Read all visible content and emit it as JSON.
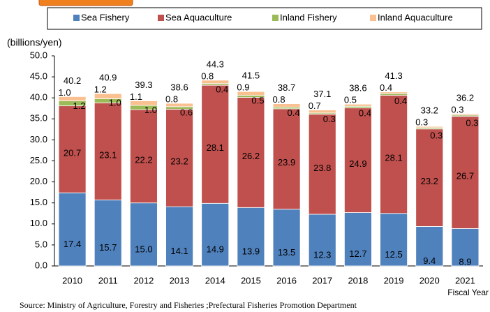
{
  "chart_data": {
    "type": "stacked_bar",
    "y_label": "(billions/yen)",
    "x_label": "Fiscal Year",
    "source": "Source: Ministry of Agriculture, Forestry and Fisheries ;Prefectural Fisheries Promotion Department",
    "categories": [
      "2010",
      "2011",
      "2012",
      "2013",
      "2014",
      "2015",
      "2016",
      "2017",
      "2018",
      "2019",
      "2020",
      "2021"
    ],
    "series": [
      {
        "name": "Sea Fishery",
        "color": "#4f81bd",
        "values": [
          17.4,
          15.7,
          15.0,
          14.1,
          14.9,
          13.9,
          13.5,
          12.3,
          12.7,
          12.5,
          9.4,
          8.9
        ],
        "value_labels": [
          "17.4",
          "15.7",
          "15.0",
          "14.1",
          "14.9",
          "13.9",
          "13.5",
          "12.3",
          "12.7",
          "12.5",
          "9.4",
          "8.9"
        ]
      },
      {
        "name": "Sea Aquaculture",
        "color": "#c0504d",
        "values": [
          20.7,
          23.1,
          22.2,
          23.2,
          28.1,
          26.2,
          23.9,
          23.8,
          24.9,
          28.1,
          23.2,
          26.7
        ],
        "value_labels": [
          "20.7",
          "23.1",
          "22.2",
          "23.2",
          "28.1",
          "26.2",
          "23.9",
          "23.8",
          "24.9",
          "28.1",
          "23.2",
          "26.7"
        ]
      },
      {
        "name": "Inland Fishery",
        "color": "#9bbb59",
        "values": [
          1.2,
          1.0,
          1.0,
          0.6,
          0.4,
          0.5,
          0.4,
          0.3,
          0.4,
          0.4,
          0.3,
          0.3
        ],
        "value_labels": [
          "1.2",
          "1.0",
          "1.0",
          "0.6",
          "0.4",
          "0.5",
          "0.4",
          "0.3",
          "0.4",
          "0.4",
          "0.3",
          "0.3"
        ]
      },
      {
        "name": "Inland Aquaculture",
        "color": "#fac090",
        "values": [
          1.0,
          1.2,
          1.1,
          0.8,
          0.8,
          0.9,
          0.8,
          0.7,
          0.5,
          0.4,
          0.3,
          0.3
        ],
        "value_labels": [
          "1.0",
          "1.2",
          "1.1",
          "0.8",
          "0.8",
          "0.9",
          "0.8",
          "0.7",
          "0.5",
          "0.4",
          "0.3",
          "0.3"
        ]
      }
    ],
    "totals": [
      40.2,
      40.9,
      39.3,
      38.6,
      44.3,
      41.5,
      38.7,
      37.1,
      38.6,
      41.3,
      33.2,
      36.2
    ],
    "ylim": [
      0,
      50
    ],
    "yticks": [
      {
        "value": 0,
        "label": "0.0"
      },
      {
        "value": 5,
        "label": "5.0"
      },
      {
        "value": 10,
        "label": "10.0"
      },
      {
        "value": 15,
        "label": "15.0"
      },
      {
        "value": 20,
        "label": "20.0"
      },
      {
        "value": 25,
        "label": "25.0"
      },
      {
        "value": 30,
        "label": "30.0"
      },
      {
        "value": 35,
        "label": "35.0"
      },
      {
        "value": 40,
        "label": "40.0"
      },
      {
        "value": 45,
        "label": "45.0"
      },
      {
        "value": 50,
        "label": "50.0"
      }
    ],
    "grid": false
  }
}
